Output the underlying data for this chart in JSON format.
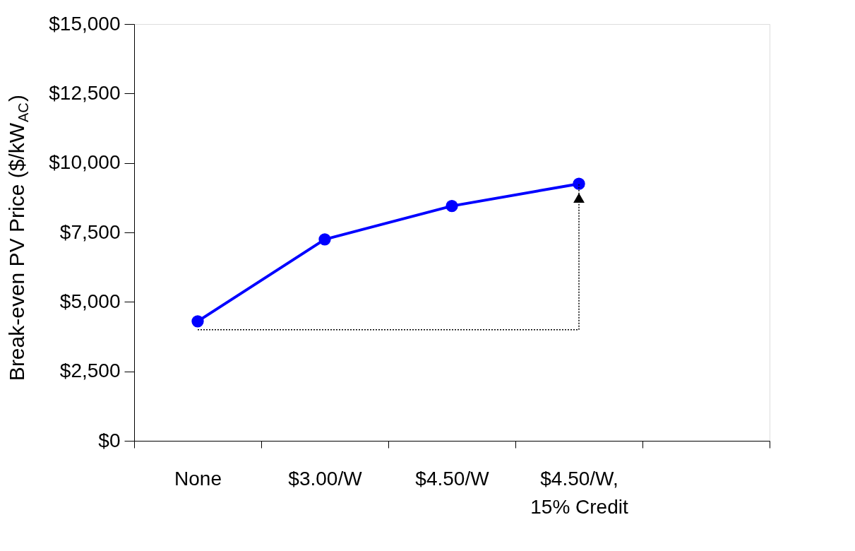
{
  "chart_data": {
    "type": "line",
    "ylabel": "Break-even PV Price ($/kW$_{AC}$)",
    "categories": [
      "None",
      "$3.00/W",
      "$4.50/W",
      "$4.50/W, 15% Credit",
      null
    ],
    "series": [
      {
        "color": "#0000ff",
        "values": [
          4300,
          7250,
          8450,
          9250,
          null
        ]
      }
    ],
    "ylim": [
      0,
      15000
    ],
    "yticks": [
      {
        "value": 0,
        "label": "$0"
      },
      {
        "value": 2500,
        "label": "$2,500"
      },
      {
        "value": 5000,
        "label": "$5,000"
      },
      {
        "value": 7500,
        "label": "$7,500"
      },
      {
        "value": 10000,
        "label": "$10,000"
      },
      {
        "value": 12500,
        "label": "$12,500"
      },
      {
        "value": 15000,
        "label": "$15,000"
      }
    ],
    "ref_lines": [
      {
        "axis": "y",
        "value": 4000,
        "color": "#000000",
        "line_style": "dotted"
      }
    ],
    "grid": false,
    "marker": "circle",
    "line_style": "solid"
  }
}
